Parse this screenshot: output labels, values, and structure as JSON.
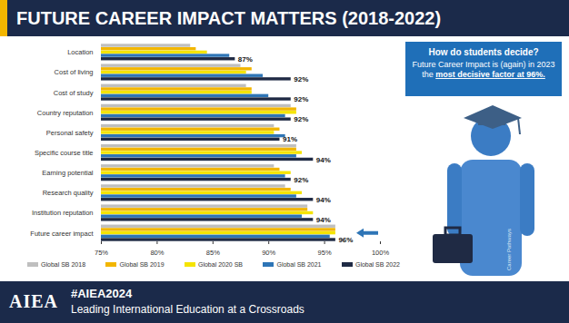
{
  "slide": {
    "title": "FUTURE CAREER IMPACT MATTERS (2018-2022)",
    "callout": {
      "heading": "How do students decide?",
      "text": "Future Career Impact is (again) in 2023 the",
      "emphasis": "most decisive factor at 96%."
    },
    "figure_label": "Career Pathways",
    "footer": {
      "logo": "AIEA",
      "hashtag": "#AIEA2024",
      "tagline": "Leading International Education at a Crossroads"
    }
  },
  "chart_data": {
    "type": "bar",
    "orientation": "horizontal",
    "categories": [
      "Location",
      "Cost of living",
      "Cost of study",
      "Country reputation",
      "Personal safety",
      "Specific course title",
      "Earning potential",
      "Research quality",
      "Institution reputation",
      "Future career impact"
    ],
    "series": [
      {
        "name": "Global SB 2018",
        "color": "#bfbfbf",
        "values": [
          83,
          87.5,
          88,
          92,
          90.5,
          92.5,
          90.5,
          91.5,
          93.5,
          96
        ]
      },
      {
        "name": "Global SB 2019",
        "color": "#f2b600",
        "values": [
          83.5,
          88.5,
          88.5,
          92.5,
          91,
          92.5,
          91,
          92,
          93.5,
          96
        ]
      },
      {
        "name": "Global 2020 SB",
        "color": "#f5e400",
        "values": [
          84.5,
          88,
          88.5,
          92.5,
          90.5,
          93,
          92,
          93,
          94,
          96
        ]
      },
      {
        "name": "Global SB 2021",
        "color": "#2e75b6",
        "values": [
          86.5,
          89.5,
          90,
          91.5,
          91.5,
          92.5,
          91.5,
          92.5,
          93,
          95.5
        ]
      },
      {
        "name": "Global SB 2022",
        "color": "#1f2a44",
        "values": [
          87,
          92,
          92,
          92,
          91,
          94,
          92,
          94,
          94,
          96
        ],
        "data_labels": true,
        "value_labels": [
          "87%",
          "92%",
          "92%",
          "92%",
          "91%",
          "94%",
          "92%",
          "94%",
          "94%",
          "96%"
        ]
      }
    ],
    "xlim": [
      75,
      100
    ],
    "xticks": [
      {
        "value": 75,
        "label": "75%"
      },
      {
        "value": 80,
        "label": "80%"
      },
      {
        "value": 85,
        "label": "85%"
      },
      {
        "value": 90,
        "label": "90%"
      },
      {
        "value": 95,
        "label": "95%"
      },
      {
        "value": 100,
        "label": "100%"
      }
    ],
    "grid": false,
    "legend": "bottom"
  }
}
